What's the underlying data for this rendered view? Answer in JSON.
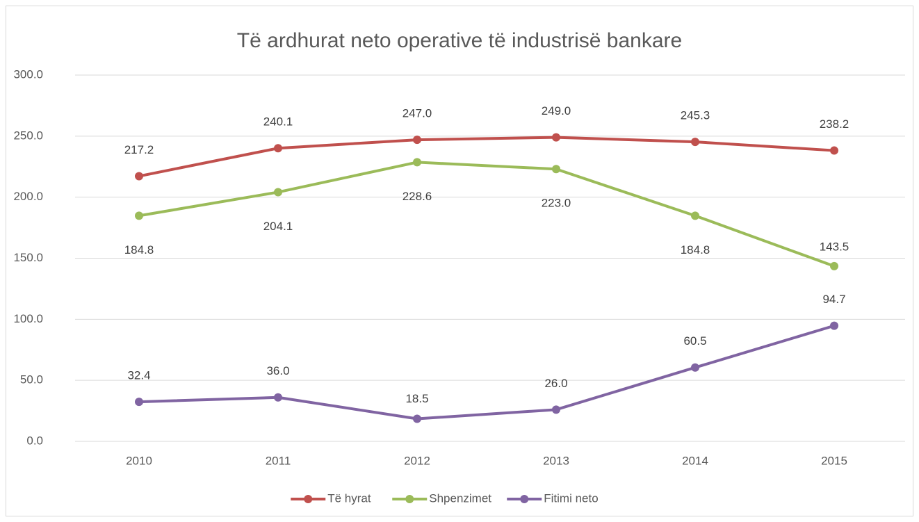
{
  "chart_data": {
    "type": "line",
    "title": "Të ardhurat neto operative të industrisë bankare",
    "categories": [
      "2010",
      "2011",
      "2012",
      "2013",
      "2014",
      "2015"
    ],
    "series": [
      {
        "name": "Të hyrat",
        "color": "#c0504d",
        "values": [
          217.2,
          240.1,
          247.0,
          249.0,
          245.3,
          238.2
        ],
        "value_labels": [
          "217.2",
          "240.1",
          "247.0",
          "249.0",
          "245.3",
          "238.2"
        ]
      },
      {
        "name": "Shpenzimet",
        "color": "#9bbb59",
        "values": [
          184.8,
          204.1,
          228.6,
          223.0,
          184.8,
          143.5
        ],
        "value_labels": [
          "184.8",
          "204.1",
          "228.6",
          "223.0",
          "184.8",
          "143.5"
        ]
      },
      {
        "name": "Fitimi neto",
        "color": "#8064a2",
        "values": [
          32.4,
          36.0,
          18.5,
          26.0,
          60.5,
          94.7
        ],
        "value_labels": [
          "32.4",
          "36.0",
          "18.5",
          "26.0",
          "60.5",
          "94.7"
        ]
      }
    ],
    "ylim": [
      0,
      300
    ],
    "yticks": [
      {
        "value": 0,
        "label": "0.0"
      },
      {
        "value": 50,
        "label": "50.0"
      },
      {
        "value": 100,
        "label": "100.0"
      },
      {
        "value": 150,
        "label": "150.0"
      },
      {
        "value": 200,
        "label": "200.0"
      },
      {
        "value": 250,
        "label": "250.0"
      },
      {
        "value": 300,
        "label": "300.0"
      }
    ],
    "grid": true,
    "legend": "bottom"
  }
}
